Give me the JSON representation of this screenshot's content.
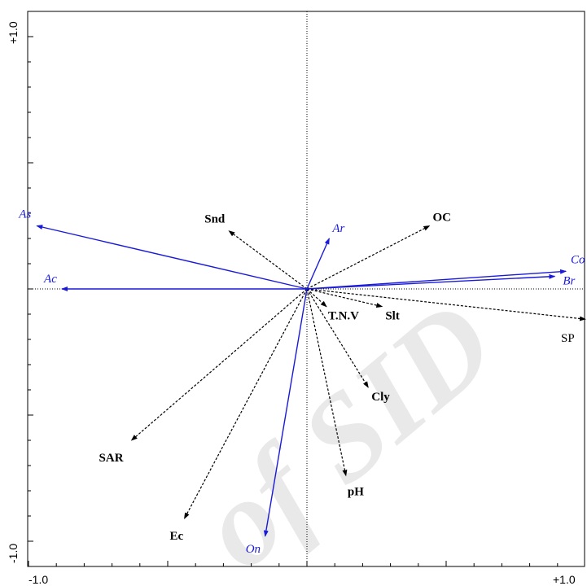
{
  "chart_data": {
    "type": "scatter",
    "subtype": "biplot",
    "title": "",
    "xlabel": "",
    "ylabel": "",
    "xlim": [
      -1.0,
      1.0
    ],
    "ylim": [
      -1.0,
      1.0
    ],
    "x_tick_labels": [
      "-1.0",
      "+1.0"
    ],
    "y_tick_labels": [
      "+1.0",
      "-1.0"
    ],
    "zero_lines": "dotted",
    "grid": false,
    "species_color": "#1a1ad8",
    "environment_color": "#000000",
    "species": [
      {
        "name": "As",
        "x": -0.97,
        "y": 0.25
      },
      {
        "name": "Ac",
        "x": -0.88,
        "y": 0.0
      },
      {
        "name": "Ar",
        "x": 0.08,
        "y": 0.2
      },
      {
        "name": "Co",
        "x": 0.93,
        "y": 0.07
      },
      {
        "name": "Br",
        "x": 0.89,
        "y": 0.05
      },
      {
        "name": "On",
        "x": -0.15,
        "y": -0.98
      }
    ],
    "environment": [
      {
        "name": "OC",
        "x": 0.44,
        "y": 0.25
      },
      {
        "name": "Snd",
        "x": -0.28,
        "y": 0.23
      },
      {
        "name": "T.N.V",
        "x": 0.07,
        "y": -0.07
      },
      {
        "name": "Slt",
        "x": 0.27,
        "y": -0.07
      },
      {
        "name": "SP",
        "x": 1.0,
        "y": -0.12
      },
      {
        "name": "Cly",
        "x": 0.22,
        "y": -0.39
      },
      {
        "name": "SAR",
        "x": -0.63,
        "y": -0.6
      },
      {
        "name": "pH",
        "x": 0.14,
        "y": -0.74
      },
      {
        "name": "Ec",
        "x": -0.44,
        "y": -0.91
      }
    ]
  },
  "watermark": "of SID"
}
